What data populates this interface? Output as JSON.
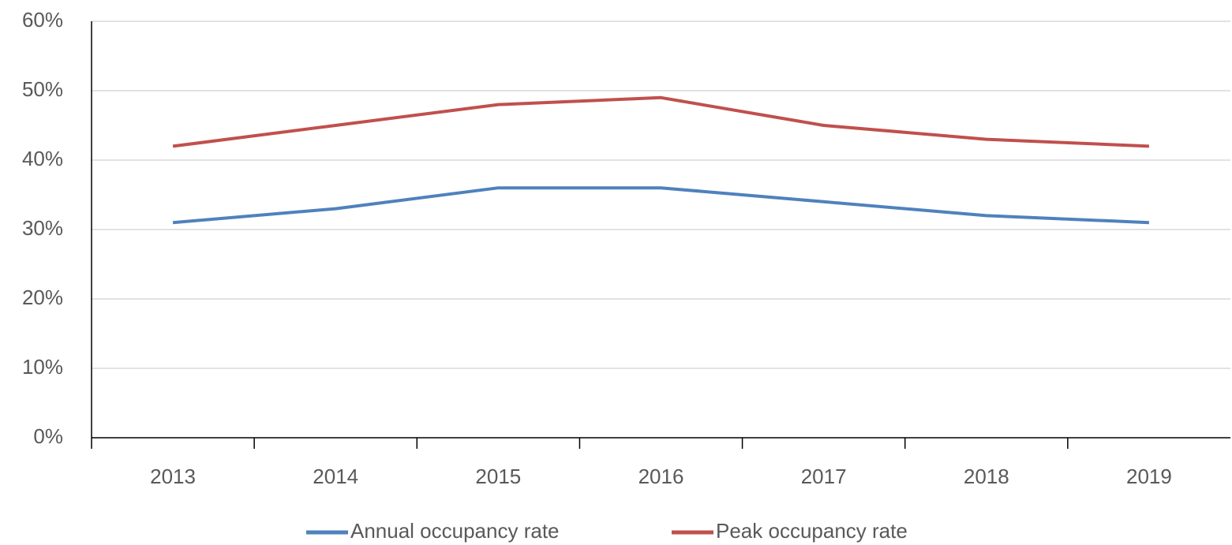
{
  "chart_data": {
    "type": "line",
    "categories": [
      "2013",
      "2014",
      "2015",
      "2016",
      "2017",
      "2018",
      "2019"
    ],
    "series": [
      {
        "name": "Annual occupancy rate",
        "color": "#4f81bd",
        "values": [
          31,
          33,
          36,
          36,
          34,
          32,
          31
        ]
      },
      {
        "name": "Peak occupancy rate",
        "color": "#c0504d",
        "values": [
          42,
          45,
          48,
          49,
          45,
          43,
          42
        ]
      }
    ],
    "ylim": [
      0,
      60
    ],
    "yticks": [
      {
        "value": 0,
        "label": "0%"
      },
      {
        "value": 10,
        "label": "10%"
      },
      {
        "value": 20,
        "label": "20%"
      },
      {
        "value": 30,
        "label": "30%"
      },
      {
        "value": 40,
        "label": "40%"
      },
      {
        "value": 50,
        "label": "50%"
      },
      {
        "value": 60,
        "label": "60%"
      }
    ],
    "grid": true,
    "legend": "bottom"
  }
}
